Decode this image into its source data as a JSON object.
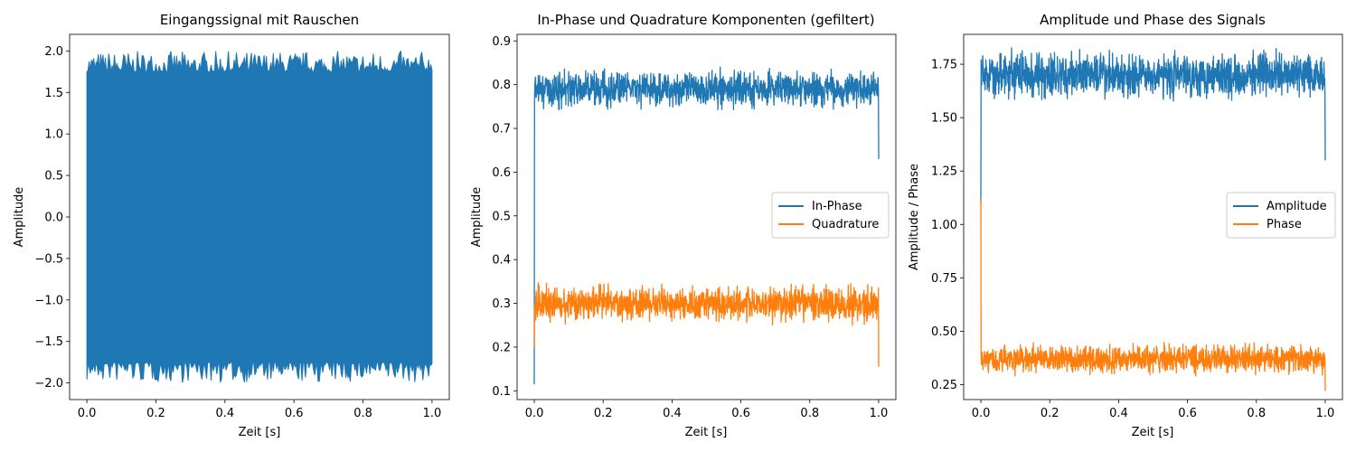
{
  "chart_data": [
    {
      "type": "line",
      "title": "Eingangssignal mit Rauschen",
      "xlabel": "Zeit [s]",
      "ylabel": "Amplitude",
      "xlim": [
        -0.05,
        1.05
      ],
      "ylim": [
        -2.2,
        2.2
      ],
      "xticks": [
        0.0,
        0.2,
        0.4,
        0.6,
        0.8,
        1.0
      ],
      "xtick_labels": [
        "0.0",
        "0.2",
        "0.4",
        "0.6",
        "0.8",
        "1.0"
      ],
      "yticks": [
        -2.0,
        -1.5,
        -1.0,
        -0.5,
        0.0,
        0.5,
        1.0,
        1.5,
        2.0
      ],
      "ytick_labels": [
        "−2.0",
        "−1.5",
        "−1.0",
        "−0.5",
        "0.0",
        "0.5",
        "1.0",
        "1.5",
        "2.0"
      ],
      "legend": null,
      "series": [
        {
          "color": "#1f77b4",
          "x_range": [
            0.0,
            1.0
          ],
          "envelope_upper": [
            1.75,
            2.0
          ],
          "envelope_lower": [
            -2.0,
            -1.75
          ],
          "filled": true
        }
      ]
    },
    {
      "type": "line",
      "title": "In-Phase und Quadrature Komponenten (gefiltert)",
      "xlabel": "Zeit [s]",
      "ylabel": "Amplitude",
      "xlim": [
        -0.05,
        1.05
      ],
      "ylim": [
        0.08,
        0.915
      ],
      "xticks": [
        0.0,
        0.2,
        0.4,
        0.6,
        0.8,
        1.0
      ],
      "xtick_labels": [
        "0.0",
        "0.2",
        "0.4",
        "0.6",
        "0.8",
        "1.0"
      ],
      "yticks": [
        0.1,
        0.2,
        0.3,
        0.4,
        0.5,
        0.6,
        0.7,
        0.8,
        0.9
      ],
      "ytick_labels": [
        "0.1",
        "0.2",
        "0.3",
        "0.4",
        "0.5",
        "0.6",
        "0.7",
        "0.8",
        "0.9"
      ],
      "legend": "center-right",
      "series": [
        {
          "name": "In-Phase",
          "color": "#1f77b4",
          "x_range": [
            0.0,
            1.0
          ],
          "start": 0.115,
          "mean": 0.79,
          "spread": 0.05,
          "end": 0.63
        },
        {
          "name": "Quadrature",
          "color": "#ff7f0e",
          "x_range": [
            0.0,
            1.0
          ],
          "start": 0.2,
          "mean": 0.3,
          "spread": 0.05,
          "end": 0.155
        }
      ]
    },
    {
      "type": "line",
      "title": "Amplitude und Phase des Signals",
      "xlabel": "Zeit [s]",
      "ylabel": "Amplitude / Phase",
      "xlim": [
        -0.05,
        1.05
      ],
      "ylim": [
        0.18,
        1.89
      ],
      "xticks": [
        0.0,
        0.2,
        0.4,
        0.6,
        0.8,
        1.0
      ],
      "xtick_labels": [
        "0.0",
        "0.2",
        "0.4",
        "0.6",
        "0.8",
        "1.0"
      ],
      "yticks": [
        0.25,
        0.5,
        0.75,
        1.0,
        1.25,
        1.5,
        1.75
      ],
      "ytick_labels": [
        "0.25",
        "0.50",
        "0.75",
        "1.00",
        "1.25",
        "1.50",
        "1.75"
      ],
      "legend": "center-right",
      "series": [
        {
          "name": "Amplitude",
          "color": "#1f77b4",
          "x_range": [
            0.0,
            1.0
          ],
          "start": 1.1,
          "mean": 1.7,
          "spread": 0.13,
          "end": 1.3
        },
        {
          "name": "Phase",
          "color": "#ff7f0e",
          "x_range": [
            0.0,
            1.0
          ],
          "start": 1.12,
          "mean": 0.37,
          "spread": 0.08,
          "end": 0.22
        }
      ]
    }
  ]
}
